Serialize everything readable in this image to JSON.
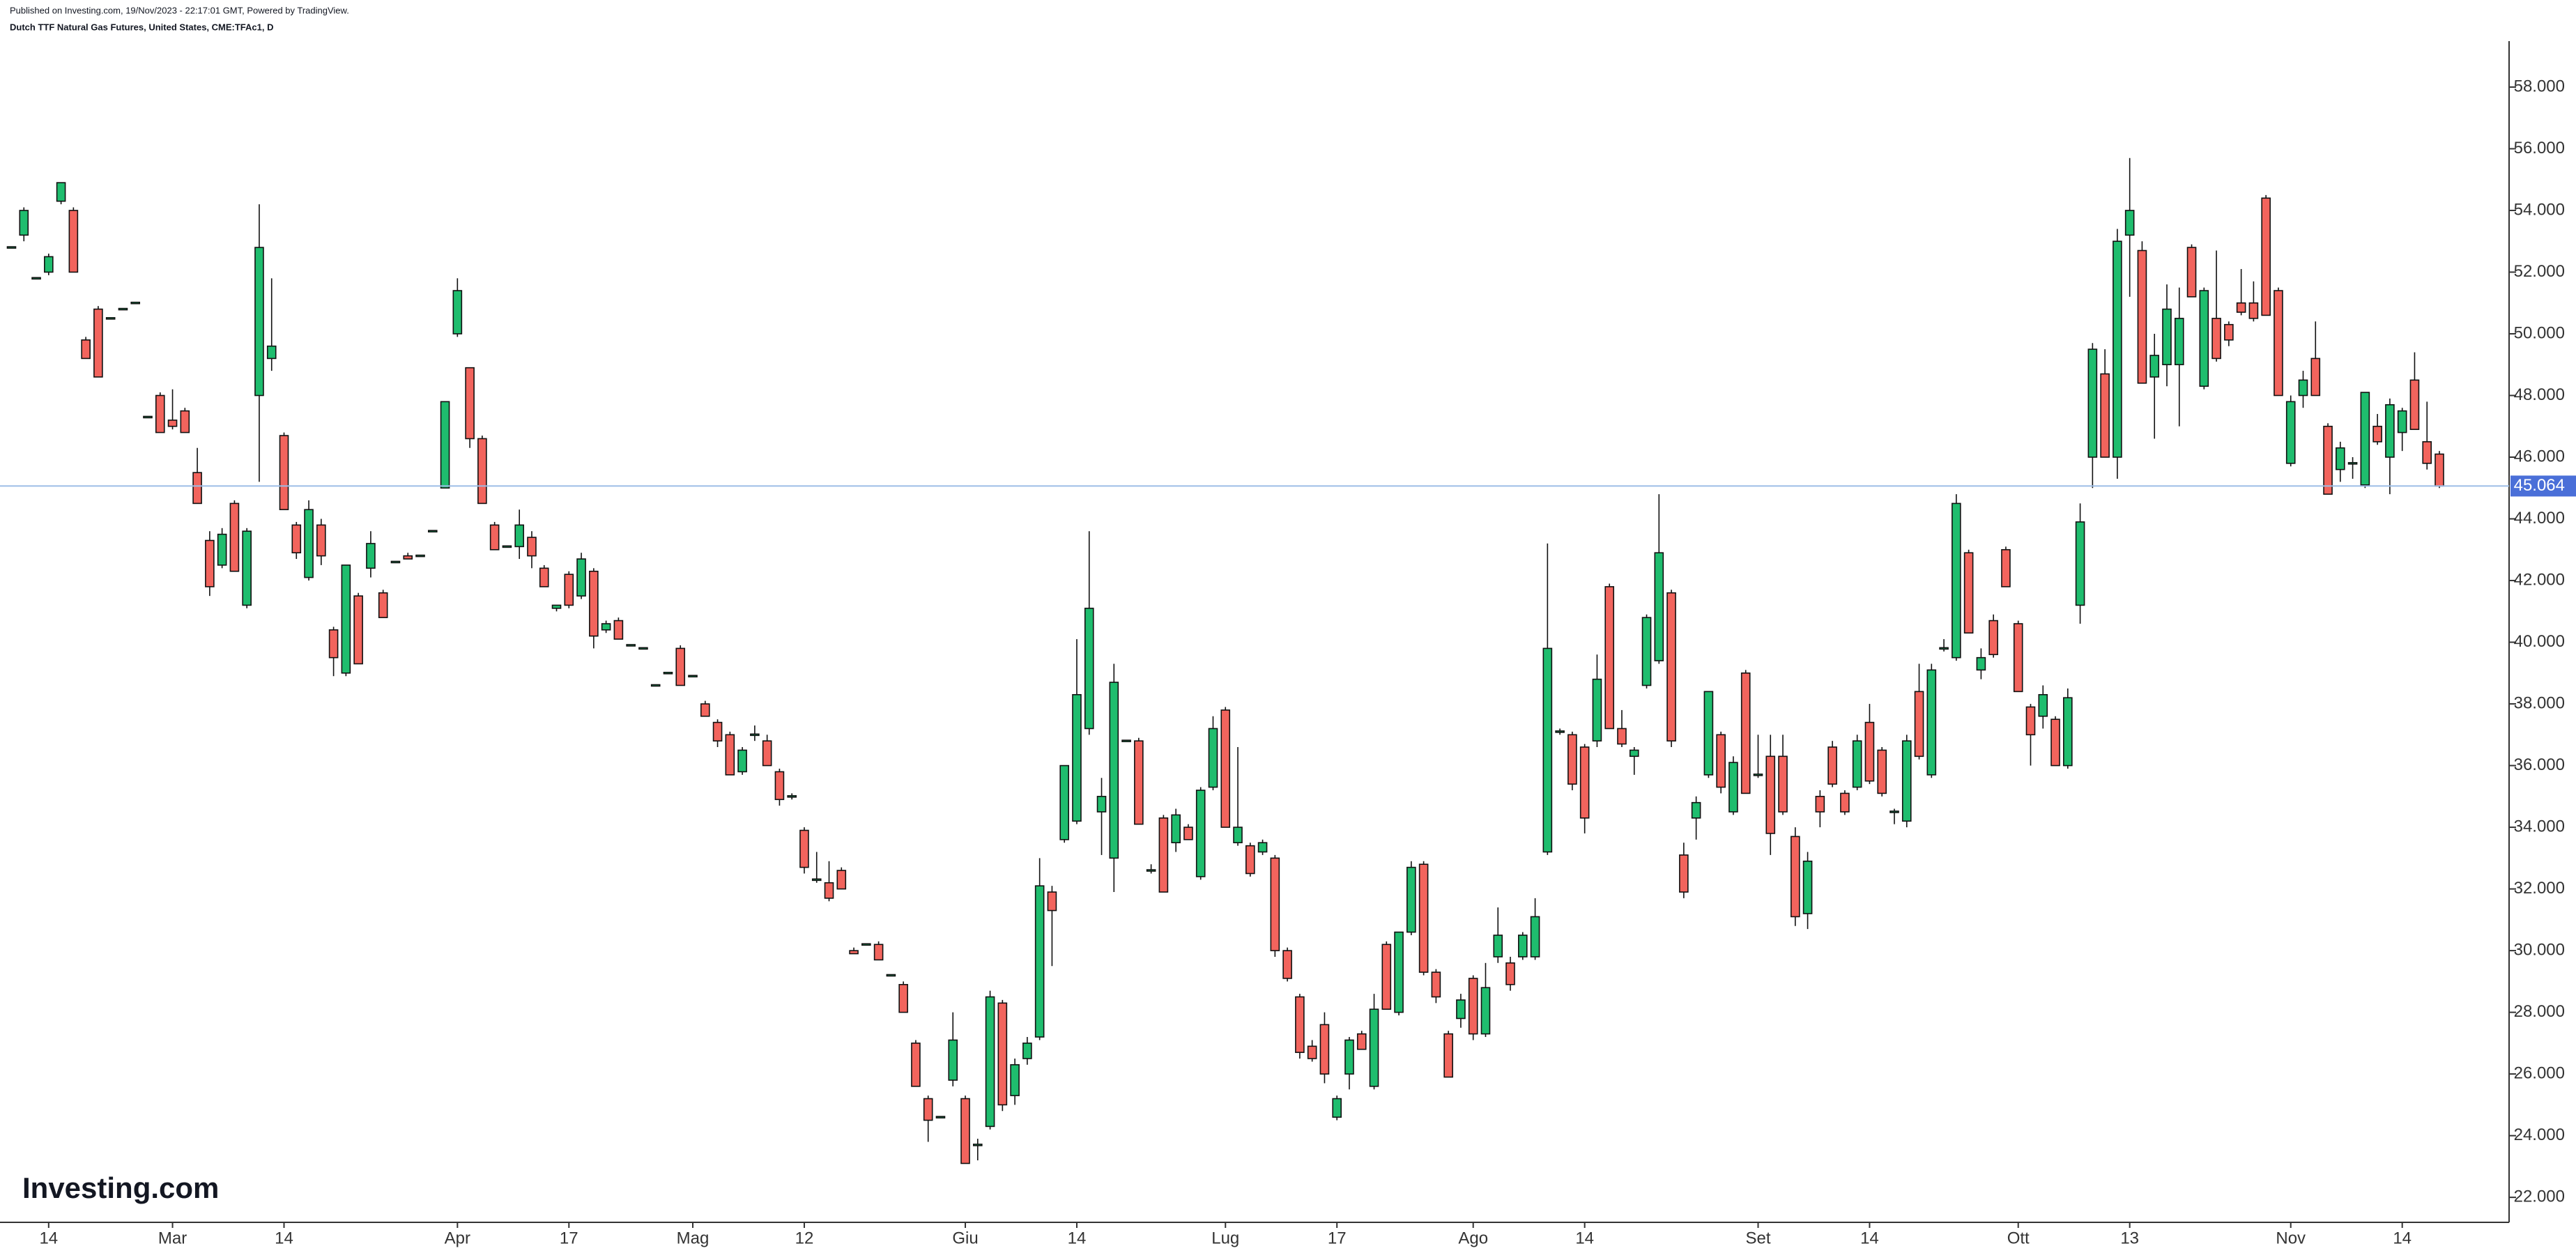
{
  "header": {
    "published": "Published on Investing.com, 19/Nov/2023 - 22:17:01 GMT, Powered by TradingView.",
    "symbol": "Dutch TTF Natural Gas Futures, United States, CME:TFAc1, D"
  },
  "logo": "Investing.com",
  "chart_data": {
    "type": "candlestick",
    "up_color": "#1fbd6e",
    "down_color": "#f2645d",
    "line_color": "#9dbde6",
    "price_box_color": "#4a6fd8",
    "ylim": [
      21.19,
      59.49
    ],
    "yticks": [
      {
        "value": 22,
        "label": "22.000"
      },
      {
        "value": 24,
        "label": "24.000"
      },
      {
        "value": 26,
        "label": "26.000"
      },
      {
        "value": 28,
        "label": "28.000"
      },
      {
        "value": 30,
        "label": "30.000"
      },
      {
        "value": 32,
        "label": "32.000"
      },
      {
        "value": 34,
        "label": "34.000"
      },
      {
        "value": 36,
        "label": "36.000"
      },
      {
        "value": 38,
        "label": "38.000"
      },
      {
        "value": 40,
        "label": "40.000"
      },
      {
        "value": 42,
        "label": "42.000"
      },
      {
        "value": 44,
        "label": "44.000"
      },
      {
        "value": 46,
        "label": "46.000"
      },
      {
        "value": 48,
        "label": "48.000"
      },
      {
        "value": 50,
        "label": "50.000"
      },
      {
        "value": 52,
        "label": "52.000"
      },
      {
        "value": 54,
        "label": "54.000"
      },
      {
        "value": 56,
        "label": "56.000"
      },
      {
        "value": 58,
        "label": "58.000"
      }
    ],
    "last_price": 45.064,
    "categories": [
      null,
      null,
      null,
      "14",
      null,
      null,
      null,
      null,
      null,
      null,
      null,
      null,
      null,
      "Mar",
      null,
      null,
      null,
      null,
      null,
      null,
      null,
      null,
      "14",
      null,
      null,
      null,
      null,
      null,
      null,
      null,
      null,
      null,
      null,
      null,
      null,
      null,
      "Apr",
      null,
      null,
      null,
      null,
      null,
      null,
      null,
      null,
      "17",
      null,
      null,
      null,
      null,
      null,
      null,
      null,
      null,
      null,
      "Mag",
      null,
      null,
      null,
      null,
      null,
      null,
      null,
      null,
      "12",
      null,
      null,
      null,
      null,
      null,
      null,
      null,
      null,
      null,
      null,
      null,
      null,
      "Giu",
      null,
      null,
      null,
      null,
      null,
      null,
      null,
      null,
      "14",
      null,
      null,
      null,
      null,
      null,
      null,
      null,
      null,
      null,
      null,
      null,
      "Lug",
      null,
      null,
      null,
      null,
      null,
      null,
      null,
      null,
      "17",
      null,
      null,
      null,
      null,
      null,
      null,
      null,
      null,
      null,
      null,
      "Ago",
      null,
      null,
      null,
      null,
      null,
      null,
      null,
      null,
      "14",
      null,
      null,
      null,
      null,
      null,
      null,
      null,
      null,
      null,
      null,
      null,
      null,
      null,
      "Set",
      null,
      null,
      null,
      null,
      null,
      null,
      null,
      null,
      "14",
      null,
      null,
      null,
      null,
      null,
      null,
      null,
      null,
      null,
      null,
      null,
      "Ott",
      null,
      null,
      null,
      null,
      null,
      null,
      null,
      null,
      "13",
      null,
      null,
      null,
      null,
      null,
      null,
      null,
      null,
      null,
      null,
      null,
      null,
      "Nov",
      null,
      null,
      null,
      null,
      null,
      null,
      null,
      null,
      "14",
      null,
      null,
      null
    ],
    "ohlc": [
      [
        52.8,
        52.8,
        52.8,
        52.8
      ],
      [
        53.2,
        54.1,
        53.0,
        54.0
      ],
      [
        51.8,
        51.8,
        51.8,
        51.8
      ],
      [
        52.0,
        52.6,
        51.9,
        52.5
      ],
      [
        54.3,
        54.9,
        54.2,
        54.9
      ],
      [
        54.0,
        54.1,
        52.0,
        52.0
      ],
      [
        49.8,
        49.9,
        49.2,
        49.2
      ],
      [
        50.8,
        50.9,
        48.6,
        48.6
      ],
      [
        50.5,
        50.5,
        50.5,
        50.5
      ],
      [
        50.8,
        50.8,
        50.8,
        50.8
      ],
      [
        51.0,
        51.0,
        51.0,
        51.0
      ],
      [
        47.3,
        47.3,
        47.3,
        47.3
      ],
      [
        48.0,
        48.1,
        46.8,
        46.8
      ],
      [
        47.2,
        48.2,
        46.9,
        47.0
      ],
      [
        47.5,
        47.6,
        46.8,
        46.8
      ],
      [
        45.5,
        46.3,
        44.5,
        44.5
      ],
      [
        43.3,
        43.6,
        41.5,
        41.8
      ],
      [
        42.5,
        43.7,
        42.4,
        43.5
      ],
      [
        44.5,
        44.6,
        42.3,
        42.3
      ],
      [
        41.2,
        43.7,
        41.1,
        43.6
      ],
      [
        48.0,
        54.2,
        45.2,
        52.8
      ],
      [
        49.2,
        51.8,
        48.8,
        49.6
      ],
      [
        46.7,
        46.8,
        44.3,
        44.3
      ],
      [
        43.8,
        43.9,
        42.7,
        42.9
      ],
      [
        42.1,
        44.6,
        42.0,
        44.3
      ],
      [
        43.8,
        44.0,
        42.5,
        42.8
      ],
      [
        40.4,
        40.5,
        38.9,
        39.5
      ],
      [
        39.0,
        42.5,
        38.9,
        42.5
      ],
      [
        41.5,
        41.6,
        39.3,
        39.3
      ],
      [
        42.4,
        43.6,
        42.1,
        43.2
      ],
      [
        41.6,
        41.7,
        40.8,
        40.8
      ],
      [
        42.6,
        42.6,
        42.6,
        42.6
      ],
      [
        42.8,
        42.9,
        42.7,
        42.7
      ],
      [
        42.8,
        42.8,
        42.8,
        42.8
      ],
      [
        43.6,
        43.6,
        43.6,
        43.6
      ],
      [
        45.0,
        47.8,
        45.0,
        47.8
      ],
      [
        50.0,
        51.8,
        49.9,
        51.4
      ],
      [
        48.9,
        48.9,
        46.3,
        46.6
      ],
      [
        46.6,
        46.7,
        44.5,
        44.5
      ],
      [
        43.8,
        43.9,
        43.0,
        43.0
      ],
      [
        43.1,
        43.1,
        43.1,
        43.1
      ],
      [
        43.1,
        44.3,
        42.7,
        43.8
      ],
      [
        43.4,
        43.6,
        42.4,
        42.8
      ],
      [
        42.4,
        42.5,
        41.8,
        41.8
      ],
      [
        41.1,
        41.2,
        41.0,
        41.2
      ],
      [
        42.2,
        42.3,
        41.1,
        41.2
      ],
      [
        41.5,
        42.9,
        41.4,
        42.7
      ],
      [
        42.3,
        42.4,
        39.8,
        40.2
      ],
      [
        40.4,
        40.7,
        40.3,
        40.6
      ],
      [
        40.7,
        40.8,
        40.1,
        40.1
      ],
      [
        39.9,
        39.9,
        39.9,
        39.9
      ],
      [
        39.8,
        39.8,
        39.8,
        39.8
      ],
      [
        38.6,
        38.6,
        38.6,
        38.6
      ],
      [
        39.0,
        39.0,
        39.0,
        39.0
      ],
      [
        39.8,
        39.9,
        38.6,
        38.6
      ],
      [
        38.9,
        38.9,
        38.9,
        38.9
      ],
      [
        38.0,
        38.1,
        37.6,
        37.6
      ],
      [
        37.4,
        37.5,
        36.6,
        36.8
      ],
      [
        37.0,
        37.1,
        35.7,
        35.7
      ],
      [
        35.8,
        36.6,
        35.7,
        36.5
      ],
      [
        37.0,
        37.3,
        36.8,
        37.0
      ],
      [
        36.8,
        37.0,
        36.0,
        36.0
      ],
      [
        35.8,
        35.9,
        34.7,
        34.9
      ],
      [
        35.0,
        35.1,
        34.9,
        35.0
      ],
      [
        33.9,
        34.0,
        32.5,
        32.7
      ],
      [
        32.3,
        33.2,
        32.2,
        32.3
      ],
      [
        32.2,
        32.9,
        31.6,
        31.7
      ],
      [
        32.6,
        32.7,
        32.0,
        32.0
      ],
      [
        30.0,
        30.1,
        29.9,
        29.9
      ],
      [
        30.2,
        30.2,
        30.2,
        30.2
      ],
      [
        30.2,
        30.3,
        29.7,
        29.7
      ],
      [
        29.2,
        29.2,
        29.2,
        29.2
      ],
      [
        28.9,
        29.0,
        28.0,
        28.0
      ],
      [
        27.0,
        27.1,
        25.6,
        25.6
      ],
      [
        25.2,
        25.3,
        23.8,
        24.5
      ],
      [
        24.6,
        24.6,
        24.6,
        24.6
      ],
      [
        25.8,
        28.0,
        25.6,
        27.1
      ],
      [
        25.2,
        25.3,
        23.1,
        23.1
      ],
      [
        23.7,
        23.9,
        23.2,
        23.7
      ],
      [
        24.3,
        28.7,
        24.2,
        28.5
      ],
      [
        28.3,
        28.4,
        24.8,
        25.0
      ],
      [
        25.3,
        26.5,
        25.0,
        26.3
      ],
      [
        26.5,
        27.2,
        26.3,
        27.0
      ],
      [
        27.2,
        33.0,
        27.1,
        32.1
      ],
      [
        31.9,
        32.1,
        29.5,
        31.3
      ],
      [
        33.6,
        36.0,
        33.5,
        36.0
      ],
      [
        34.2,
        40.1,
        34.1,
        38.3
      ],
      [
        37.2,
        43.6,
        37.0,
        41.1
      ],
      [
        34.5,
        35.6,
        33.1,
        35.0
      ],
      [
        33.0,
        39.3,
        31.9,
        38.7
      ],
      [
        36.8,
        36.8,
        36.8,
        36.8
      ],
      [
        36.8,
        36.9,
        34.1,
        34.1
      ],
      [
        32.6,
        32.8,
        32.5,
        32.6
      ],
      [
        34.3,
        34.4,
        31.9,
        31.9
      ],
      [
        33.5,
        34.6,
        33.2,
        34.4
      ],
      [
        34.0,
        34.1,
        33.6,
        33.6
      ],
      [
        32.4,
        35.3,
        32.3,
        35.2
      ],
      [
        35.3,
        37.6,
        35.2,
        37.2
      ],
      [
        37.8,
        37.9,
        34.0,
        34.0
      ],
      [
        33.5,
        36.6,
        33.4,
        34.0
      ],
      [
        33.4,
        33.5,
        32.4,
        32.5
      ],
      [
        33.2,
        33.6,
        33.1,
        33.5
      ],
      [
        33.0,
        33.1,
        29.8,
        30.0
      ],
      [
        30.0,
        30.1,
        29.0,
        29.1
      ],
      [
        28.5,
        28.6,
        26.5,
        26.7
      ],
      [
        26.9,
        27.1,
        26.4,
        26.5
      ],
      [
        27.6,
        28.0,
        25.7,
        26.0
      ],
      [
        24.6,
        25.3,
        24.5,
        25.2
      ],
      [
        26.0,
        27.2,
        25.5,
        27.1
      ],
      [
        27.3,
        27.4,
        26.8,
        26.8
      ],
      [
        25.6,
        28.6,
        25.5,
        28.1
      ],
      [
        30.2,
        30.3,
        28.1,
        28.1
      ],
      [
        28.0,
        30.6,
        27.9,
        30.6
      ],
      [
        30.6,
        32.9,
        30.5,
        32.7
      ],
      [
        32.8,
        32.9,
        29.2,
        29.3
      ],
      [
        29.3,
        29.4,
        28.3,
        28.5
      ],
      [
        27.3,
        27.4,
        25.9,
        25.9
      ],
      [
        27.8,
        28.6,
        27.5,
        28.4
      ],
      [
        29.1,
        29.2,
        27.1,
        27.3
      ],
      [
        27.3,
        29.6,
        27.2,
        28.8
      ],
      [
        29.8,
        31.4,
        29.6,
        30.5
      ],
      [
        29.6,
        29.8,
        28.7,
        28.9
      ],
      [
        29.8,
        30.6,
        29.7,
        30.5
      ],
      [
        29.8,
        31.7,
        29.7,
        31.1
      ],
      [
        33.2,
        43.2,
        33.1,
        39.8
      ],
      [
        37.1,
        37.2,
        37.0,
        37.1
      ],
      [
        37.0,
        37.1,
        35.2,
        35.4
      ],
      [
        36.6,
        36.7,
        33.8,
        34.3
      ],
      [
        36.8,
        39.6,
        36.6,
        38.8
      ],
      [
        41.8,
        41.9,
        37.2,
        37.2
      ],
      [
        37.2,
        37.8,
        36.6,
        36.7
      ],
      [
        36.3,
        36.6,
        35.7,
        36.5
      ],
      [
        38.6,
        40.9,
        38.5,
        40.8
      ],
      [
        39.4,
        44.8,
        39.3,
        42.9
      ],
      [
        41.6,
        41.7,
        36.6,
        36.8
      ],
      [
        33.1,
        33.5,
        31.7,
        31.9
      ],
      [
        34.3,
        35.0,
        33.6,
        34.8
      ],
      [
        35.7,
        38.4,
        35.6,
        38.4
      ],
      [
        37.0,
        37.1,
        35.1,
        35.3
      ],
      [
        34.5,
        36.3,
        34.4,
        36.1
      ],
      [
        39.0,
        39.1,
        35.1,
        35.1
      ],
      [
        35.7,
        37.0,
        35.6,
        35.7
      ],
      [
        36.3,
        37.0,
        33.1,
        33.8
      ],
      [
        36.3,
        37.0,
        34.4,
        34.5
      ],
      [
        33.7,
        34.0,
        30.8,
        31.1
      ],
      [
        31.2,
        33.2,
        30.7,
        32.9
      ],
      [
        35.0,
        35.2,
        34.0,
        34.5
      ],
      [
        36.6,
        36.8,
        35.3,
        35.4
      ],
      [
        35.1,
        35.2,
        34.4,
        34.5
      ],
      [
        35.3,
        37.0,
        35.2,
        36.8
      ],
      [
        37.4,
        38.0,
        35.4,
        35.5
      ],
      [
        36.5,
        36.6,
        35.0,
        35.1
      ],
      [
        34.5,
        34.6,
        34.1,
        34.5
      ],
      [
        34.2,
        37.0,
        34.0,
        36.8
      ],
      [
        38.4,
        39.3,
        36.2,
        36.3
      ],
      [
        35.7,
        39.3,
        35.6,
        39.1
      ],
      [
        39.8,
        40.1,
        39.7,
        39.8
      ],
      [
        39.5,
        44.8,
        39.4,
        44.5
      ],
      [
        42.9,
        43.0,
        40.3,
        40.3
      ],
      [
        39.1,
        39.8,
        38.8,
        39.5
      ],
      [
        40.7,
        40.9,
        39.5,
        39.6
      ],
      [
        43.0,
        43.1,
        41.8,
        41.8
      ],
      [
        40.6,
        40.7,
        38.4,
        38.4
      ],
      [
        37.9,
        38.0,
        36.0,
        37.0
      ],
      [
        37.6,
        38.6,
        37.2,
        38.3
      ],
      [
        37.5,
        37.6,
        36.0,
        36.0
      ],
      [
        36.0,
        38.5,
        35.9,
        38.2
      ],
      [
        41.2,
        44.5,
        40.6,
        43.9
      ],
      [
        46.0,
        49.7,
        45.0,
        49.5
      ],
      [
        48.7,
        49.5,
        46.0,
        46.0
      ],
      [
        46.0,
        53.4,
        45.3,
        53.0
      ],
      [
        53.2,
        55.7,
        51.2,
        54.0
      ],
      [
        52.7,
        53.0,
        48.4,
        48.4
      ],
      [
        48.6,
        50.0,
        46.6,
        49.3
      ],
      [
        49.0,
        51.6,
        48.3,
        50.8
      ],
      [
        49.0,
        51.5,
        47.0,
        50.5
      ],
      [
        52.8,
        52.9,
        51.2,
        51.2
      ],
      [
        48.3,
        51.5,
        48.2,
        51.4
      ],
      [
        50.5,
        52.7,
        49.1,
        49.2
      ],
      [
        50.3,
        50.4,
        49.6,
        49.8
      ],
      [
        51.0,
        52.1,
        50.6,
        50.7
      ],
      [
        51.0,
        51.7,
        50.4,
        50.5
      ],
      [
        54.4,
        54.5,
        50.6,
        50.6
      ],
      [
        51.4,
        51.5,
        48.0,
        48.0
      ],
      [
        45.8,
        48.0,
        45.7,
        47.8
      ],
      [
        48.0,
        48.8,
        47.6,
        48.5
      ],
      [
        49.2,
        50.4,
        48.0,
        48.0
      ],
      [
        47.0,
        47.1,
        44.8,
        44.8
      ],
      [
        45.6,
        46.5,
        45.2,
        46.3
      ],
      [
        45.8,
        46.0,
        45.3,
        45.8
      ],
      [
        45.1,
        48.1,
        45.0,
        48.1
      ],
      [
        47.0,
        47.4,
        46.4,
        46.5
      ],
      [
        46.0,
        47.9,
        44.8,
        47.7
      ],
      [
        46.8,
        47.6,
        46.2,
        47.5
      ],
      [
        48.5,
        49.4,
        46.9,
        46.9
      ],
      [
        46.5,
        47.8,
        45.6,
        45.8
      ],
      [
        46.1,
        46.2,
        45.0,
        45.064
      ]
    ]
  }
}
